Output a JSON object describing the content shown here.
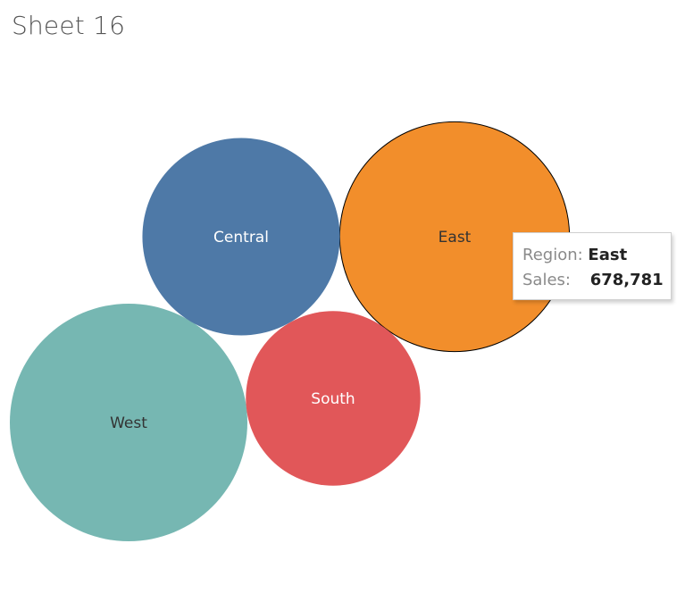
{
  "sheet": {
    "title": "Sheet 16"
  },
  "chart_data": {
    "type": "bubble",
    "title": "Sheet 16",
    "measure": "Sales",
    "dimension": "Region",
    "points": [
      {
        "region": "East",
        "sales": 678781,
        "color": "#f28e2b",
        "label_color": "#333333",
        "highlighted": true
      },
      {
        "region": "West",
        "sales": 725458,
        "color": "#76b7b2",
        "label_color": "#333333",
        "highlighted": false
      },
      {
        "region": "Central",
        "sales": 501240,
        "color": "#4e79a7",
        "label_color": "#ffffff",
        "highlighted": false
      },
      {
        "region": "South",
        "sales": 391722,
        "color": "#e15759",
        "label_color": "#ffffff",
        "highlighted": false
      }
    ]
  },
  "tooltip": {
    "region_key": "Region:",
    "region_value": "East",
    "sales_key": "Sales:",
    "sales_value": "678,781"
  }
}
